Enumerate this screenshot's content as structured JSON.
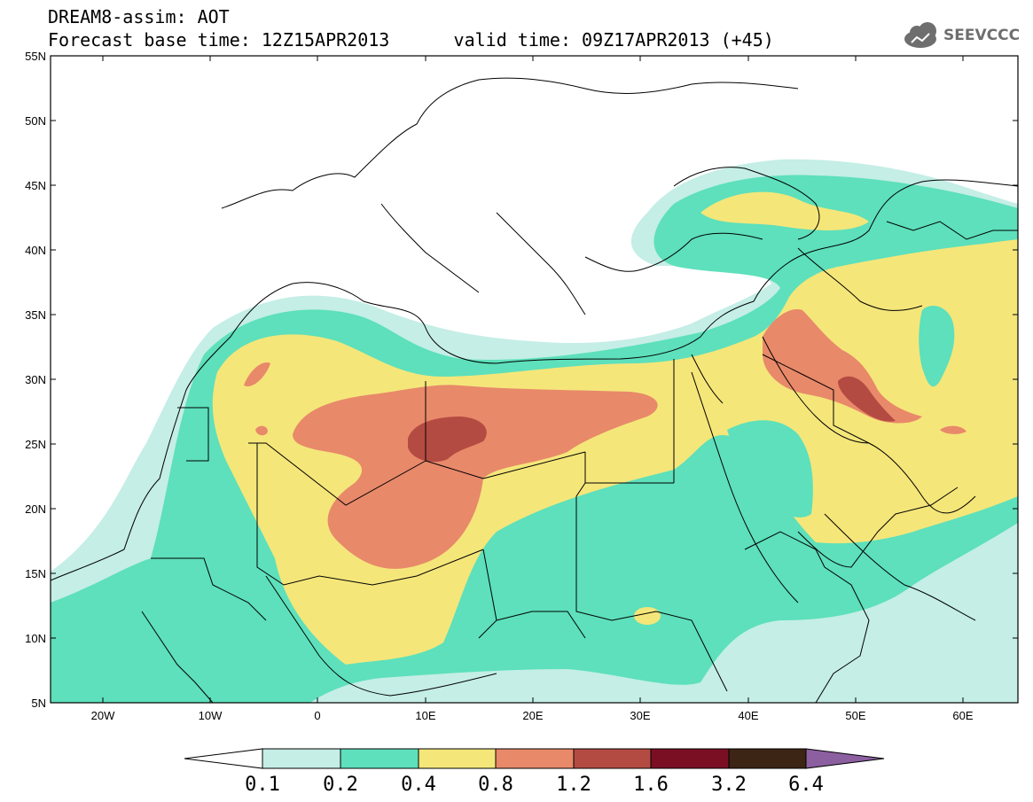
{
  "title": {
    "line1": "DREAM8-assim: AOT",
    "line2": "Forecast base time: 12Z15APR2013      valid time: 09Z17APR2013 (+45)"
  },
  "logo": {
    "text": "SEEVCCC",
    "icon": "cloud-icon"
  },
  "map": {
    "lon_range": [
      -25,
      65
    ],
    "lat_range": [
      5,
      55
    ],
    "lat_labels": [
      "55N",
      "50N",
      "45N",
      "40N",
      "35N",
      "30N",
      "25N",
      "20N",
      "15N",
      "10N",
      "5N"
    ],
    "lon_labels": [
      "20W",
      "10W",
      "0",
      "10E",
      "20E",
      "30E",
      "40E",
      "50E",
      "60E"
    ]
  },
  "legend": {
    "labels": [
      "0.1",
      "0.2",
      "0.4",
      "0.8",
      "1.2",
      "1.6",
      "3.2",
      "6.4"
    ],
    "colors": [
      "#ffffff",
      "#c4eee6",
      "#5de0bb",
      "#f5e67a",
      "#e8896a",
      "#b44b42",
      "#7a0f24",
      "#3c2515",
      "#8c5fa0"
    ]
  }
}
